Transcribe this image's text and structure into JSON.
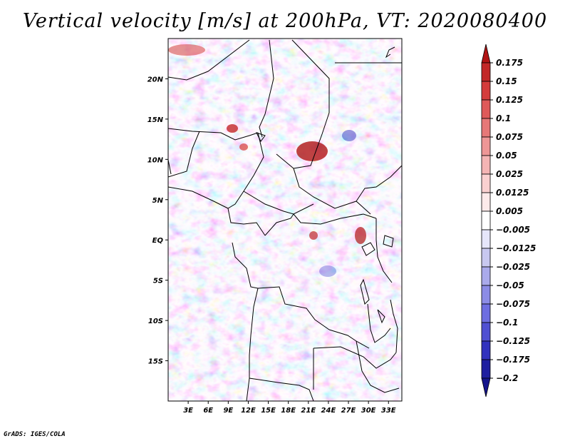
{
  "title": "Vertical velocity [m/s] at 200hPa, VT: 2020080400",
  "credit": "GrADS: IGES/COLA",
  "map": {
    "lat_range": [
      -20,
      25
    ],
    "lon_range": [
      0,
      35
    ],
    "lat_ticks": [
      "20N",
      "15N",
      "10N",
      "5N",
      "EQ",
      "5S",
      "10S",
      "15S"
    ],
    "lon_ticks": [
      "3E",
      "6E",
      "9E",
      "12E",
      "15E",
      "18E",
      "21E",
      "24E",
      "27E",
      "30E",
      "33E"
    ]
  },
  "colorbar": {
    "labels": [
      "0.175",
      "0.15",
      "0.125",
      "0.1",
      "0.075",
      "0.05",
      "0.025",
      "0.0125",
      "0.005",
      "−0.005",
      "−0.0125",
      "−0.025",
      "−0.05",
      "−0.075",
      "−0.1",
      "−0.125",
      "−0.175",
      "−0.2"
    ],
    "colors": [
      "#b01414",
      "#c22828",
      "#d43c3c",
      "#de5a5a",
      "#e67878",
      "#ee9696",
      "#f4b4b4",
      "#fad0d0",
      "#fdeaea",
      "#ffffff",
      "#e6e6fa",
      "#c8c8f0",
      "#aaaaeb",
      "#8c8ce6",
      "#6e6ee1",
      "#5050d2",
      "#3232be",
      "#1e1ea0",
      "#14148c"
    ]
  }
}
